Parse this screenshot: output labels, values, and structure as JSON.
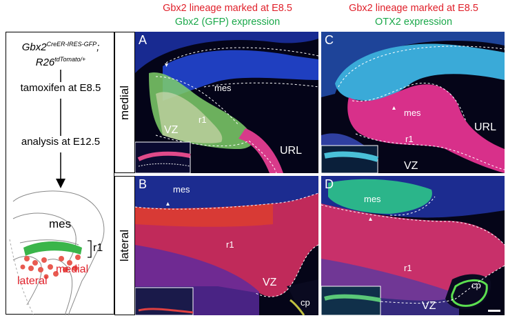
{
  "column_headers": [
    {
      "line1": "Gbx2 lineage marked at E8.5",
      "line2": "Gbx2 (GFP) expression"
    },
    {
      "line1": "Gbx2 lineage marked at E8.5",
      "line2": "OTX2 expression"
    }
  ],
  "row_labels": [
    "medial",
    "lateral"
  ],
  "schematic": {
    "genotype_line1_base": "Gbx2",
    "genotype_line1_sup": "CreER-IRES-GFP",
    "genotype_line1_tail": ";",
    "genotype_line2_base": "R26",
    "genotype_line2_sup": "tdTomato/+",
    "step1": "tamoxifen at E8.5",
    "step2": "analysis at E12.5",
    "region_mes": "mes",
    "region_r1": "r1",
    "label_lateral": "lateral",
    "label_medial": "medial"
  },
  "panels": {
    "A": {
      "letter": "A",
      "labels": [
        "mes",
        "r1",
        "VZ",
        "URL"
      ]
    },
    "B": {
      "letter": "B",
      "labels": [
        "mes",
        "r1",
        "VZ",
        "cp"
      ]
    },
    "C": {
      "letter": "C",
      "labels": [
        "mes",
        "r1",
        "URL",
        "VZ"
      ]
    },
    "D": {
      "letter": "D",
      "labels": [
        "mes",
        "r1",
        "VZ",
        "cp"
      ]
    }
  },
  "colors": {
    "red": "#e0202a",
    "green": "#1aa84a",
    "tissue_blue": "#1a3fbf",
    "tdtomato": "#e0306a",
    "gfp": "#6ee06a"
  }
}
